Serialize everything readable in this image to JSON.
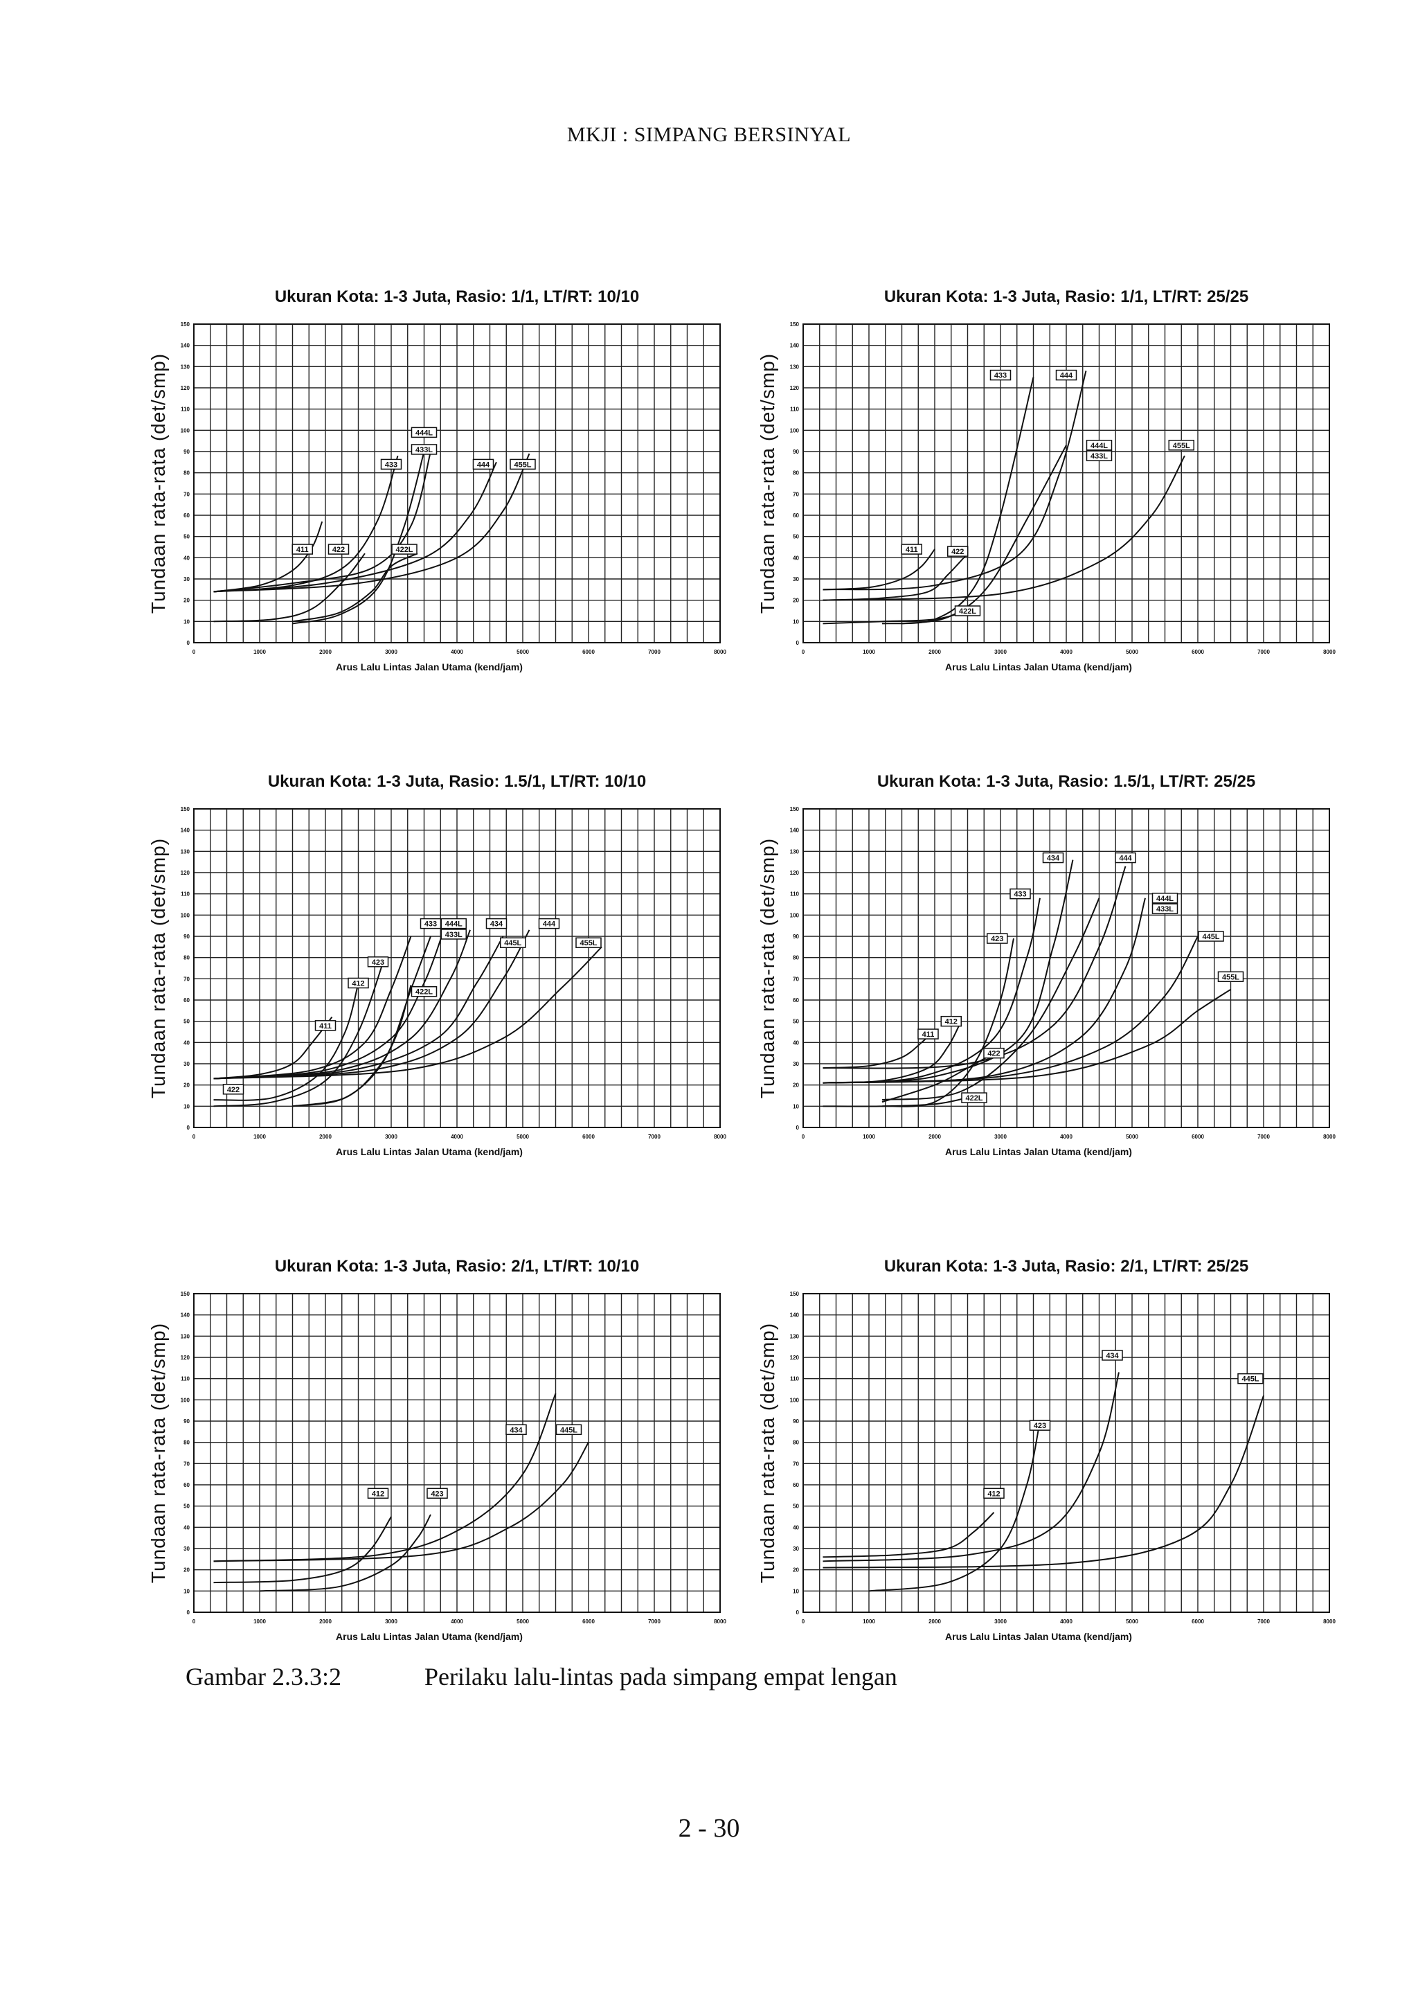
{
  "header": {
    "title": "MKJI : SIMPANG BERSINYAL"
  },
  "caption": {
    "number": "Gambar 2.3.3:2",
    "text": "Perilaku lalu-lintas pada simpang empat lengan"
  },
  "footer": {
    "page": "2 - 30"
  },
  "common": {
    "xlabel": "Arus Lalu Lintas Jalan Utama (kend/jam)",
    "ylabel": "Tundaan rata-rata (det/smp)",
    "xlim": [
      0,
      8000
    ],
    "ylim": [
      0,
      150
    ],
    "xticks": [
      "0",
      "1000",
      "2000",
      "3000",
      "4000",
      "5000",
      "6000",
      "7000",
      "8000"
    ],
    "yticks": [
      "0",
      "10",
      "20",
      "30",
      "40",
      "50",
      "60",
      "70",
      "80",
      "90",
      "100",
      "110",
      "120",
      "130",
      "140",
      "150"
    ]
  },
  "chart_data": [
    {
      "type": "line",
      "title": "Ukuran Kota: 1-3 Juta, Rasio: 1/1, LT/RT: 10/10",
      "xlabel": "Arus Lalu Lintas Jalan Utama (kend/jam)",
      "ylabel": "Tundaan rata-rata (det/smp)",
      "xlim": [
        0,
        8000
      ],
      "ylim": [
        0,
        150
      ],
      "series": [
        {
          "name": "411",
          "x": [
            300,
            1000,
            1500,
            1800,
            1950
          ],
          "y": [
            24,
            27,
            34,
            45,
            57
          ]
        },
        {
          "name": "422",
          "x": [
            300,
            1200,
            1800,
            2300,
            2600
          ],
          "y": [
            10,
            11,
            16,
            30,
            42
          ]
        },
        {
          "name": "433",
          "x": [
            300,
            1500,
            2300,
            2800,
            3100
          ],
          "y": [
            24,
            27,
            36,
            58,
            88
          ]
        },
        {
          "name": "422L",
          "x": [
            1500,
            2200,
            2700,
            3000,
            3400
          ],
          "y": [
            10,
            14,
            24,
            36,
            42
          ]
        },
        {
          "name": "433L",
          "x": [
            1500,
            2200,
            2800,
            3200,
            3500
          ],
          "y": [
            9,
            13,
            26,
            55,
            90
          ]
        },
        {
          "name": "444L",
          "x": [
            300,
            1500,
            2700,
            3300,
            3600
          ],
          "y": [
            24,
            28,
            35,
            55,
            90
          ]
        },
        {
          "name": "444",
          "x": [
            300,
            2000,
            3500,
            4200,
            4600
          ],
          "y": [
            24,
            28,
            40,
            60,
            85
          ]
        },
        {
          "name": "455L",
          "x": [
            300,
            2500,
            4000,
            4700,
            5100
          ],
          "y": [
            24,
            28,
            40,
            62,
            89
          ]
        }
      ],
      "tags": [
        {
          "label": "411",
          "x": 1650,
          "y": 44
        },
        {
          "label": "422",
          "x": 2200,
          "y": 44
        },
        {
          "label": "433",
          "x": 3000,
          "y": 84
        },
        {
          "label": "444L",
          "x": 3500,
          "y": 99
        },
        {
          "label": "433L",
          "x": 3500,
          "y": 91
        },
        {
          "label": "422L",
          "x": 3200,
          "y": 44
        },
        {
          "label": "444",
          "x": 4400,
          "y": 84
        },
        {
          "label": "455L",
          "x": 5000,
          "y": 84
        }
      ]
    },
    {
      "type": "line",
      "title": "Ukuran Kota: 1-3 Juta, Rasio: 1/1, LT/RT: 25/25",
      "xlabel": "Arus Lalu Lintas Jalan Utama (kend/jam)",
      "ylabel": "Tundaan rata-rata (det/smp)",
      "xlim": [
        0,
        8000
      ],
      "ylim": [
        0,
        150
      ],
      "series": [
        {
          "name": "411",
          "x": [
            300,
            1000,
            1500,
            1800,
            2000
          ],
          "y": [
            25,
            26,
            30,
            36,
            44
          ]
        },
        {
          "name": "422",
          "x": [
            300,
            1200,
            1900,
            2200,
            2500
          ],
          "y": [
            20,
            21,
            24,
            32,
            42
          ]
        },
        {
          "name": "422L",
          "x": [
            300,
            1200,
            2000,
            2500
          ],
          "y": [
            9,
            10,
            11,
            15
          ]
        },
        {
          "name": "433",
          "x": [
            1200,
            2000,
            2600,
            3000,
            3500
          ],
          "y": [
            9,
            11,
            26,
            60,
            125
          ]
        },
        {
          "name": "433L",
          "x": [
            1500,
            2200,
            2800,
            3400,
            4000
          ],
          "y": [
            9,
            12,
            26,
            58,
            93
          ]
        },
        {
          "name": "444",
          "x": [
            300,
            2000,
            3300,
            3900,
            4300
          ],
          "y": [
            25,
            27,
            42,
            80,
            128
          ]
        },
        {
          "name": "455L",
          "x": [
            300,
            3000,
            4500,
            5300,
            5800
          ],
          "y": [
            20,
            23,
            38,
            60,
            88
          ]
        }
      ],
      "tags": [
        {
          "label": "411",
          "x": 1650,
          "y": 44
        },
        {
          "label": "422",
          "x": 2350,
          "y": 43
        },
        {
          "label": "422L",
          "x": 2500,
          "y": 15
        },
        {
          "label": "433",
          "x": 3000,
          "y": 126
        },
        {
          "label": "444",
          "x": 4000,
          "y": 126
        },
        {
          "label": "444L",
          "x": 4500,
          "y": 93
        },
        {
          "label": "433L",
          "x": 4500,
          "y": 88
        },
        {
          "label": "455L",
          "x": 5750,
          "y": 93
        }
      ]
    },
    {
      "type": "line",
      "title": "Ukuran Kota: 1-3 Juta, Rasio: 1.5/1, LT/RT: 10/10",
      "xlabel": "Arus Lalu Lintas Jalan Utama (kend/jam)",
      "ylabel": "Tundaan rata-rata (det/smp)",
      "xlim": [
        0,
        8000
      ],
      "ylim": [
        0,
        150
      ],
      "series": [
        {
          "name": "411",
          "x": [
            300,
            1000,
            1500,
            1800,
            2100
          ],
          "y": [
            23,
            25,
            30,
            40,
            52
          ]
        },
        {
          "name": "412",
          "x": [
            300,
            1200,
            1900,
            2300,
            2500
          ],
          "y": [
            13,
            14,
            25,
            45,
            68
          ]
        },
        {
          "name": "423",
          "x": [
            300,
            1200,
            2000,
            2500,
            2900
          ],
          "y": [
            10,
            12,
            22,
            45,
            80
          ]
        },
        {
          "name": "422L",
          "x": [
            1500,
            2300,
            2800,
            3100,
            3300
          ],
          "y": [
            10,
            14,
            28,
            45,
            67
          ]
        },
        {
          "name": "433",
          "x": [
            300,
            1800,
            2600,
            3000,
            3300
          ],
          "y": [
            23,
            27,
            40,
            65,
            90
          ]
        },
        {
          "name": "433L",
          "x": [
            1500,
            2300,
            2900,
            3300,
            3600
          ],
          "y": [
            10,
            14,
            32,
            65,
            90
          ]
        },
        {
          "name": "444L",
          "x": [
            300,
            2000,
            3000,
            3500,
            3800
          ],
          "y": [
            23,
            27,
            42,
            68,
            93
          ]
        },
        {
          "name": "434",
          "x": [
            300,
            2200,
            3300,
            3900,
            4200
          ],
          "y": [
            23,
            27,
            42,
            70,
            93
          ]
        },
        {
          "name": "445L",
          "x": [
            300,
            2400,
            3700,
            4300,
            4700
          ],
          "y": [
            23,
            27,
            42,
            68,
            90
          ]
        },
        {
          "name": "444",
          "x": [
            300,
            2700,
            4000,
            4700,
            5100
          ],
          "y": [
            23,
            27,
            42,
            70,
            93
          ]
        },
        {
          "name": "455L",
          "x": [
            300,
            3200,
            4700,
            5600,
            6200
          ],
          "y": [
            23,
            27,
            42,
            66,
            85
          ]
        }
      ],
      "tags": [
        {
          "label": "422",
          "x": 600,
          "y": 18
        },
        {
          "label": "411",
          "x": 2000,
          "y": 48
        },
        {
          "label": "412",
          "x": 2500,
          "y": 68
        },
        {
          "label": "423",
          "x": 2800,
          "y": 78
        },
        {
          "label": "422L",
          "x": 3500,
          "y": 64
        },
        {
          "label": "433",
          "x": 3600,
          "y": 96
        },
        {
          "label": "444L",
          "x": 3950,
          "y": 96
        },
        {
          "label": "433L",
          "x": 3950,
          "y": 91
        },
        {
          "label": "434",
          "x": 4600,
          "y": 96
        },
        {
          "label": "445L",
          "x": 4850,
          "y": 87
        },
        {
          "label": "444",
          "x": 5400,
          "y": 96
        },
        {
          "label": "455L",
          "x": 6000,
          "y": 87
        }
      ]
    },
    {
      "type": "line",
      "title": "Ukuran Kota: 1-3 Juta, Rasio: 1.5/1, LT/RT: 25/25",
      "xlabel": "Arus Lalu Lintas Jalan Utama (kend/jam)",
      "ylabel": "Tundaan rata-rata (det/smp)",
      "xlim": [
        0,
        8000
      ],
      "ylim": [
        0,
        150
      ],
      "series": [
        {
          "name": "411",
          "x": [
            300,
            1000,
            1500,
            1800,
            2000
          ],
          "y": [
            28,
            29,
            33,
            40,
            46
          ]
        },
        {
          "name": "412",
          "x": [
            300,
            1200,
            1900,
            2200,
            2400
          ],
          "y": [
            21,
            22,
            28,
            38,
            50
          ]
        },
        {
          "name": "422L",
          "x": [
            300,
            1200,
            2000,
            2500
          ],
          "y": [
            10,
            10,
            11,
            14
          ]
        },
        {
          "name": "422",
          "x": [
            1200,
            2000,
            2500,
            2900
          ],
          "y": [
            12,
            20,
            28,
            35
          ]
        },
        {
          "name": "423",
          "x": [
            1200,
            2000,
            2600,
            3000,
            3200
          ],
          "y": [
            10,
            12,
            30,
            60,
            89
          ]
        },
        {
          "name": "433",
          "x": [
            300,
            1800,
            2900,
            3400,
            3600
          ],
          "y": [
            21,
            24,
            42,
            80,
            108
          ]
        },
        {
          "name": "434",
          "x": [
            300,
            2000,
            3300,
            3800,
            4100
          ],
          "y": [
            21,
            24,
            42,
            85,
            126
          ]
        },
        {
          "name": "433L",
          "x": [
            1200,
            2400,
            3400,
            4100,
            4500
          ],
          "y": [
            13,
            17,
            42,
            80,
            108
          ]
        },
        {
          "name": "444",
          "x": [
            300,
            2500,
            3800,
            4500,
            4900
          ],
          "y": [
            28,
            30,
            48,
            85,
            123
          ]
        },
        {
          "name": "444L",
          "x": [
            300,
            2800,
            4200,
            4900,
            5200
          ],
          "y": [
            21,
            24,
            42,
            75,
            108
          ]
        },
        {
          "name": "445L",
          "x": [
            300,
            3000,
            4600,
            5500,
            6000
          ],
          "y": [
            21,
            24,
            38,
            62,
            90
          ]
        },
        {
          "name": "455L",
          "x": [
            300,
            3500,
            5200,
            6000,
            6500
          ],
          "y": [
            21,
            24,
            38,
            55,
            65
          ]
        }
      ],
      "tags": [
        {
          "label": "411",
          "x": 1900,
          "y": 44
        },
        {
          "label": "412",
          "x": 2250,
          "y": 50
        },
        {
          "label": "422",
          "x": 2900,
          "y": 35
        },
        {
          "label": "422L",
          "x": 2600,
          "y": 14
        },
        {
          "label": "423",
          "x": 2950,
          "y": 89
        },
        {
          "label": "433",
          "x": 3300,
          "y": 110
        },
        {
          "label": "434",
          "x": 3800,
          "y": 127
        },
        {
          "label": "444",
          "x": 4900,
          "y": 127
        },
        {
          "label": "444L",
          "x": 5500,
          "y": 108
        },
        {
          "label": "433L",
          "x": 5500,
          "y": 103
        },
        {
          "label": "445L",
          "x": 6200,
          "y": 90
        },
        {
          "label": "455L",
          "x": 6500,
          "y": 71
        }
      ]
    },
    {
      "type": "line",
      "title": "Ukuran Kota: 1-3 Juta, Rasio: 2/1, LT/RT: 10/10",
      "xlabel": "Arus Lalu Lintas Jalan Utama (kend/jam)",
      "ylabel": "Tundaan rata-rata (det/smp)",
      "xlim": [
        0,
        8000
      ],
      "ylim": [
        0,
        150
      ],
      "series": [
        {
          "name": "412",
          "x": [
            300,
            1500,
            2300,
            2700,
            3000
          ],
          "y": [
            14,
            15,
            20,
            30,
            45
          ]
        },
        {
          "name": "423",
          "x": [
            1000,
            2200,
            3000,
            3400,
            3600
          ],
          "y": [
            10,
            12,
            22,
            35,
            46
          ]
        },
        {
          "name": "434",
          "x": [
            300,
            2800,
            4100,
            5000,
            5500
          ],
          "y": [
            24,
            27,
            40,
            65,
            103
          ]
        },
        {
          "name": "445L",
          "x": [
            300,
            3500,
            4800,
            5600,
            6000
          ],
          "y": [
            24,
            27,
            40,
            60,
            80
          ]
        }
      ],
      "tags": [
        {
          "label": "412",
          "x": 2800,
          "y": 56
        },
        {
          "label": "423",
          "x": 3700,
          "y": 56
        },
        {
          "label": "434",
          "x": 4900,
          "y": 86
        },
        {
          "label": "445L",
          "x": 5700,
          "y": 86
        }
      ]
    },
    {
      "type": "line",
      "title": "Ukuran Kota: 1-3 Juta, Rasio: 2/1, LT/RT: 25/25",
      "xlabel": "Arus Lalu Lintas Jalan Utama (kend/jam)",
      "ylabel": "Tundaan rata-rata (det/smp)",
      "xlim": [
        0,
        8000
      ],
      "ylim": [
        0,
        150
      ],
      "series": [
        {
          "name": "412",
          "x": [
            300,
            1400,
            2200,
            2600,
            2900
          ],
          "y": [
            26,
            27,
            30,
            38,
            47
          ]
        },
        {
          "name": "423",
          "x": [
            1000,
            2200,
            3000,
            3400,
            3600
          ],
          "y": [
            10,
            14,
            30,
            60,
            90
          ]
        },
        {
          "name": "434",
          "x": [
            300,
            2500,
            3800,
            4500,
            4800
          ],
          "y": [
            24,
            27,
            40,
            75,
            113
          ]
        },
        {
          "name": "445L",
          "x": [
            300,
            4000,
            5800,
            6500,
            7000
          ],
          "y": [
            21,
            23,
            35,
            60,
            102
          ]
        }
      ],
      "tags": [
        {
          "label": "412",
          "x": 2900,
          "y": 56
        },
        {
          "label": "423",
          "x": 3600,
          "y": 88
        },
        {
          "label": "434",
          "x": 4700,
          "y": 121
        },
        {
          "label": "445L",
          "x": 6800,
          "y": 110
        }
      ]
    }
  ]
}
